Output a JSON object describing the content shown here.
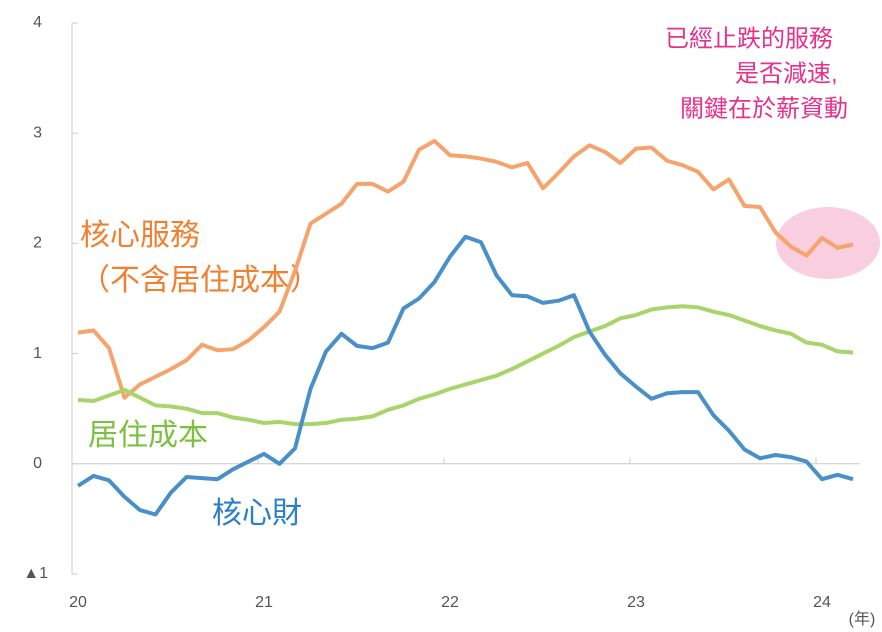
{
  "chart_data": {
    "type": "line",
    "categories": [
      "20",
      null,
      null,
      null,
      null,
      null,
      null,
      null,
      null,
      null,
      null,
      null,
      "21",
      null,
      null,
      null,
      null,
      null,
      null,
      null,
      null,
      null,
      null,
      null,
      "22",
      null,
      null,
      null,
      null,
      null,
      null,
      null,
      null,
      null,
      null,
      null,
      "23",
      null,
      null,
      null,
      null,
      null,
      null,
      null,
      null,
      null,
      null,
      null,
      "24",
      null,
      null
    ],
    "x_label": "(年)",
    "ylim": [
      -1,
      4
    ],
    "yticks": [
      {
        "value": -1,
        "label": "▲1"
      },
      0,
      1,
      2,
      3,
      4
    ],
    "annotations": [
      "已經止跌的服務",
      "是否減速,",
      "關鍵在於薪資動",
      "（不含居住成本）"
    ],
    "series": [
      {
        "name": "核心服務",
        "color": "#f4a46c",
        "label_color": "#f08030",
        "values": [
          1.19,
          1.21,
          1.05,
          0.6,
          0.72,
          0.79,
          0.86,
          0.94,
          1.08,
          1.03,
          1.04,
          1.12,
          1.24,
          1.38,
          1.75,
          2.18,
          2.27,
          2.36,
          2.54,
          2.54,
          2.47,
          2.56,
          2.85,
          2.93,
          2.8,
          2.79,
          2.77,
          2.74,
          2.69,
          2.73,
          2.5,
          2.64,
          2.79,
          2.89,
          2.83,
          2.73,
          2.86,
          2.87,
          2.75,
          2.71,
          2.65,
          2.49,
          2.58,
          2.34,
          2.33,
          2.1,
          1.97,
          1.89,
          2.05,
          1.96,
          1.99
        ]
      },
      {
        "name": "居住成本",
        "color": "#a8d46a",
        "label_color": "#7cc040",
        "values": [
          0.58,
          0.57,
          0.62,
          0.67,
          0.6,
          0.53,
          0.52,
          0.5,
          0.46,
          0.46,
          0.42,
          0.4,
          0.37,
          0.38,
          0.36,
          0.36,
          0.37,
          0.4,
          0.41,
          0.43,
          0.49,
          0.53,
          0.59,
          0.63,
          0.68,
          0.72,
          0.76,
          0.8,
          0.86,
          0.93,
          1.0,
          1.07,
          1.15,
          1.2,
          1.25,
          1.32,
          1.35,
          1.4,
          1.42,
          1.43,
          1.42,
          1.38,
          1.35,
          1.3,
          1.25,
          1.21,
          1.18,
          1.1,
          1.08,
          1.02,
          1.01
        ]
      },
      {
        "name": "核心財",
        "color": "#4a90c8",
        "label_color": "#2a80c8",
        "values": [
          -0.2,
          -0.11,
          -0.15,
          -0.3,
          -0.42,
          -0.46,
          -0.26,
          -0.12,
          -0.13,
          -0.14,
          -0.05,
          0.02,
          0.09,
          0.0,
          0.14,
          0.68,
          1.02,
          1.18,
          1.07,
          1.05,
          1.1,
          1.41,
          1.5,
          1.65,
          1.88,
          2.06,
          2.01,
          1.71,
          1.53,
          1.52,
          1.46,
          1.48,
          1.53,
          1.2,
          0.99,
          0.82,
          0.7,
          0.59,
          0.64,
          0.65,
          0.65,
          0.44,
          0.3,
          0.13,
          0.05,
          0.08,
          0.06,
          0.02,
          -0.14,
          -0.1,
          -0.14
        ]
      }
    ]
  }
}
